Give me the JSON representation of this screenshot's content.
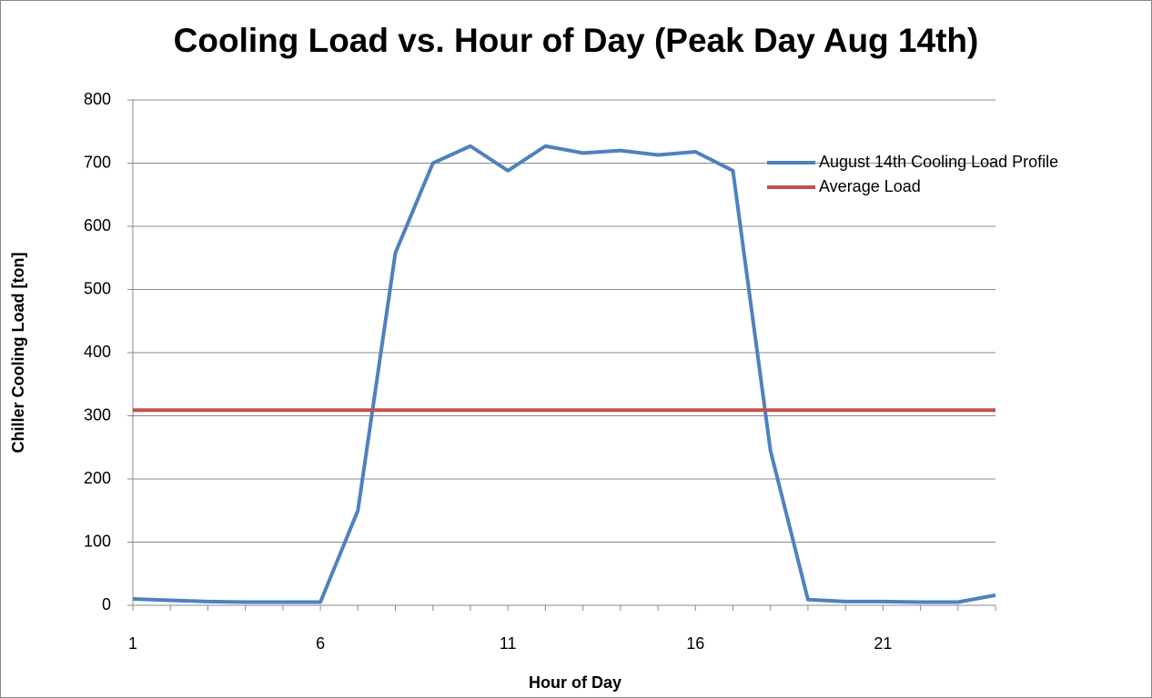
{
  "chart_data": {
    "type": "line",
    "title": "Cooling Load vs. Hour of Day (Peak Day Aug 14th)",
    "x_label": "Hour of Day",
    "y_label": "Chiller Cooling Load [ton]",
    "categories": [
      1,
      null,
      null,
      null,
      null,
      6,
      null,
      null,
      null,
      null,
      11,
      null,
      null,
      null,
      null,
      16,
      null,
      null,
      null,
      null,
      21,
      null,
      null,
      null
    ],
    "series": [
      {
        "name": "August 14th Cooling Load Profile",
        "color": "#4f81bd",
        "values": [
          10,
          8,
          6,
          5,
          5,
          5,
          150,
          558,
          700,
          727,
          688,
          727,
          716,
          720,
          713,
          718,
          688,
          245,
          9,
          6,
          6,
          5,
          5,
          16
        ]
      },
      {
        "name": "Average Load",
        "color": "#c0504d",
        "values": [
          309,
          309,
          309,
          309,
          309,
          309,
          309,
          309,
          309,
          309,
          309,
          309,
          309,
          309,
          309,
          309,
          309,
          309,
          309,
          309,
          309,
          309,
          309,
          309
        ]
      }
    ],
    "ylim": [
      0,
      800
    ],
    "yticks": [
      0,
      100,
      200,
      300,
      400,
      500,
      600,
      700,
      800
    ],
    "grid": true,
    "legend": "top-right"
  }
}
